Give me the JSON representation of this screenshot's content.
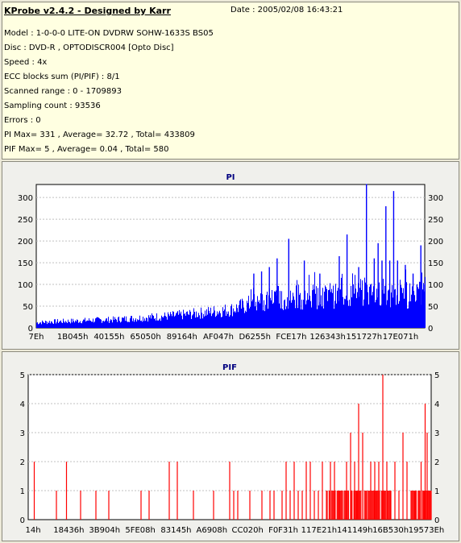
{
  "info": {
    "title": "KProbe v2.4.2 - Designed by Karr",
    "date": "Date : 2005/02/08 16:43:21",
    "lines": [
      "Model : 1-0-0-0 LITE-ON DVDRW SOHW-1633S BS05",
      "Disc : DVD-R , OPTODISCR004 [Opto Disc]",
      "Speed : 4x",
      "ECC blocks sum (PI/PIF) : 8/1",
      "Scanned range : 0 - 1709893",
      "Sampling count : 93536",
      "Errors : 0",
      "PI Max= 331 , Average= 32.72 , Total= 433809",
      "PIF Max= 5 , Average= 0.04 , Total= 580"
    ]
  },
  "colors": {
    "pi": "#0000ff",
    "pif": "#ff0000",
    "plot_bg": "#ffffff",
    "grid": "#c0c0c0",
    "header_bg": "#ffffe1"
  },
  "chart_data": [
    {
      "type": "area",
      "title": "PI",
      "ylim": [
        0,
        330
      ],
      "yticks": [
        0,
        50,
        100,
        150,
        200,
        250,
        300
      ],
      "xticks": [
        "7Eh",
        "1B045h",
        "40155h",
        "65050h",
        "89164h",
        "AF047h",
        "D6255h",
        "FCE17h",
        "126343h",
        "151727h",
        "17E071h"
      ],
      "series": [
        {
          "baseline": [
            [
              0,
              12
            ],
            [
              3,
              14
            ],
            [
              6,
              15
            ],
            [
              10,
              16
            ],
            [
              15,
              18
            ],
            [
              20,
              19
            ],
            [
              25,
              22
            ],
            [
              30,
              25
            ],
            [
              35,
              28
            ],
            [
              40,
              32
            ],
            [
              45,
              37
            ],
            [
              50,
              42
            ],
            [
              55,
              55
            ],
            [
              58,
              60
            ],
            [
              62,
              62
            ],
            [
              65,
              65
            ],
            [
              70,
              70
            ],
            [
              75,
              72
            ],
            [
              80,
              75
            ],
            [
              85,
              80
            ],
            [
              90,
              78
            ],
            [
              95,
              72
            ],
            [
              100,
              78
            ]
          ],
          "spikes": [
            [
              56,
              125
            ],
            [
              58,
              130
            ],
            [
              60,
              140
            ],
            [
              62,
              160
            ],
            [
              65,
              205
            ],
            [
              69,
              155
            ],
            [
              73,
              125
            ],
            [
              78,
              165
            ],
            [
              80,
              215
            ],
            [
              83,
              140
            ],
            [
              85,
              331
            ],
            [
              87,
              160
            ],
            [
              88,
              195
            ],
            [
              89,
              155
            ],
            [
              90,
              280
            ],
            [
              91,
              155
            ],
            [
              92,
              315
            ],
            [
              93,
              155
            ],
            [
              95,
              145
            ],
            [
              97,
              125
            ],
            [
              98,
              100
            ],
            [
              99,
              190
            ],
            [
              100,
              100
            ]
          ]
        }
      ]
    },
    {
      "type": "bar",
      "title": "PIF",
      "ylim": [
        0,
        5
      ],
      "yticks": [
        0,
        1,
        2,
        3,
        4,
        5
      ],
      "xticks": [
        "14h",
        "18436h",
        "3B904h",
        "5FE08h",
        "83145h",
        "A6908h",
        "CC020h",
        "F0F31h",
        "117E21h",
        "141149h",
        "16B530h",
        "19573Eh"
      ],
      "series": [
        {
          "points": [
            [
              1.5,
              2
            ],
            [
              7,
              1
            ],
            [
              9.5,
              2
            ],
            [
              13,
              1
            ],
            [
              16.8,
              1
            ],
            [
              20,
              1
            ],
            [
              28,
              1
            ],
            [
              30,
              1
            ],
            [
              35,
              2
            ],
            [
              37,
              2
            ],
            [
              41,
              1
            ],
            [
              46,
              1
            ],
            [
              50,
              2
            ],
            [
              51,
              1
            ],
            [
              52,
              1
            ],
            [
              55,
              1
            ],
            [
              58,
              1
            ],
            [
              60,
              1
            ],
            [
              61,
              1
            ],
            [
              63,
              1
            ],
            [
              64,
              2
            ],
            [
              65,
              1
            ],
            [
              66,
              2
            ],
            [
              67,
              1
            ],
            [
              68,
              1
            ],
            [
              69,
              2
            ],
            [
              70,
              2
            ],
            [
              71,
              1
            ],
            [
              72,
              1
            ],
            [
              73,
              2
            ],
            [
              74,
              1
            ],
            [
              75,
              2
            ],
            [
              76,
              2
            ],
            [
              77,
              1
            ],
            [
              78,
              1
            ],
            [
              79,
              2
            ],
            [
              80,
              3
            ],
            [
              81,
              2
            ],
            [
              81.5,
              1
            ],
            [
              82,
              4
            ],
            [
              83,
              3
            ],
            [
              84,
              1
            ],
            [
              85,
              2
            ],
            [
              86,
              2
            ],
            [
              86.5,
              1
            ],
            [
              87,
              2
            ],
            [
              88,
              5
            ],
            [
              89,
              2
            ],
            [
              90,
              1
            ],
            [
              91,
              2
            ],
            [
              92,
              1
            ],
            [
              93,
              3
            ],
            [
              94,
              2
            ],
            [
              95,
              1
            ],
            [
              96,
              1
            ],
            [
              97,
              1
            ],
            [
              97.5,
              2
            ],
            [
              98,
              1
            ],
            [
              98.5,
              4
            ],
            [
              99,
              3
            ],
            [
              99.5,
              1
            ],
            [
              100,
              1
            ]
          ],
          "dense_regions": [
            [
              74,
              90
            ],
            [
              95,
              100
            ]
          ]
        }
      ]
    }
  ]
}
